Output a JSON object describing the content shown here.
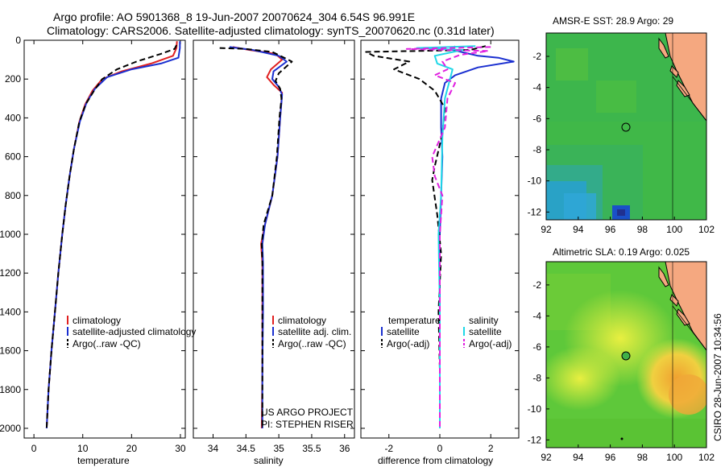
{
  "header": {
    "line1": "Argo profile: AO 5901368_8 19-Jun-2007 20070624_304 6.54S 96.991E",
    "line2": "Climatology: CARS2006. Satellite-adjusted climatology: synTS_20070620.nc (0.31d later)"
  },
  "colors": {
    "clim": "#e02020",
    "sat": "#1a2fd0",
    "argo": "#000000",
    "sat_diff_sal": "#20d8e8",
    "argo_diff_sal": "#e020e0",
    "land": "#f5a880"
  },
  "chart_data": [
    {
      "type": "line",
      "title": "",
      "xlabel": "temperature",
      "ylabel": "",
      "xlim": [
        -2,
        31
      ],
      "ylim": [
        2050,
        0
      ],
      "xticks": [
        0,
        10,
        20,
        30
      ],
      "yticks": [
        0,
        200,
        400,
        600,
        800,
        1000,
        1200,
        1400,
        1600,
        1800,
        2000
      ],
      "legend": [
        "climatology",
        "satellite-adjusted climatology",
        "Argo(..raw -QC)"
      ],
      "series": [
        {
          "name": "climatology",
          "color_key": "clim",
          "dash": false,
          "points": [
            [
              29.3,
              5
            ],
            [
              29.2,
              40
            ],
            [
              28.5,
              80
            ],
            [
              24,
              120
            ],
            [
              18,
              160
            ],
            [
              14,
              200
            ],
            [
              12,
              260
            ],
            [
              10.5,
              330
            ],
            [
              9.3,
              420
            ],
            [
              8.2,
              560
            ],
            [
              7.3,
              700
            ],
            [
              6.5,
              850
            ],
            [
              5.8,
              1000
            ],
            [
              5.0,
              1200
            ],
            [
              4.3,
              1400
            ],
            [
              3.6,
              1600
            ],
            [
              3.0,
              1800
            ],
            [
              2.6,
              2000
            ]
          ]
        },
        {
          "name": "satellite-adjusted climatology",
          "color_key": "sat",
          "dash": false,
          "points": [
            [
              29.9,
              5
            ],
            [
              29.9,
              40
            ],
            [
              29.6,
              90
            ],
            [
              26,
              120
            ],
            [
              20,
              150
            ],
            [
              15,
              190
            ],
            [
              12.5,
              250
            ],
            [
              10.8,
              320
            ],
            [
              9.4,
              420
            ],
            [
              8.2,
              560
            ],
            [
              7.3,
              700
            ],
            [
              6.5,
              850
            ],
            [
              5.8,
              1000
            ],
            [
              5.0,
              1200
            ],
            [
              4.3,
              1400
            ],
            [
              3.6,
              1600
            ],
            [
              3.0,
              1800
            ],
            [
              2.6,
              2000
            ]
          ]
        },
        {
          "name": "Argo(..raw -QC)",
          "color_key": "argo",
          "dash": true,
          "points": [
            [
              29.2,
              25
            ],
            [
              28.8,
              45
            ],
            [
              26,
              70
            ],
            [
              21,
              110
            ],
            [
              17,
              150
            ],
            [
              14,
              200
            ],
            [
              12.3,
              260
            ],
            [
              10.6,
              330
            ],
            [
              9.3,
              420
            ],
            [
              8.2,
              560
            ],
            [
              7.3,
              700
            ],
            [
              6.5,
              850
            ],
            [
              5.8,
              1000
            ],
            [
              5.0,
              1200
            ],
            [
              4.3,
              1400
            ],
            [
              3.6,
              1600
            ],
            [
              3.0,
              1800
            ],
            [
              2.6,
              2000
            ]
          ]
        }
      ]
    },
    {
      "type": "line",
      "title": "",
      "xlabel": "salinity",
      "xlim": [
        33.7,
        36.15
      ],
      "ylim": [
        2050,
        0
      ],
      "xticks": [
        34,
        34.5,
        35,
        35.5,
        36
      ],
      "xtick_labels": [
        "34",
        "34.5",
        "35",
        "35.5",
        "36"
      ],
      "legend": [
        "climatology",
        "satellite adj. clim.",
        "Argo(..raw -QC)"
      ],
      "annotations": [
        "US ARGO PROJECT",
        "PI: STEPHEN RISER"
      ],
      "series": [
        {
          "name": "climatology",
          "color_key": "clim",
          "dash": false,
          "points": [
            [
              34.3,
              35
            ],
            [
              34.55,
              50
            ],
            [
              34.95,
              70
            ],
            [
              35.05,
              100
            ],
            [
              34.88,
              150
            ],
            [
              34.82,
              190
            ],
            [
              34.92,
              230
            ],
            [
              35.05,
              270
            ],
            [
              35.02,
              400
            ],
            [
              34.98,
              600
            ],
            [
              34.9,
              800
            ],
            [
              34.79,
              950
            ],
            [
              34.73,
              1050
            ],
            [
              34.75,
              1150
            ],
            [
              34.75,
              1400
            ],
            [
              34.75,
              1700
            ],
            [
              34.74,
              2000
            ]
          ]
        },
        {
          "name": "satellite adj. clim.",
          "color_key": "sat",
          "dash": false,
          "points": [
            [
              34.25,
              35
            ],
            [
              34.6,
              50
            ],
            [
              35.0,
              80
            ],
            [
              35.12,
              110
            ],
            [
              34.92,
              160
            ],
            [
              34.9,
              200
            ],
            [
              35.0,
              240
            ],
            [
              35.05,
              280
            ],
            [
              35.02,
              400
            ],
            [
              34.98,
              600
            ],
            [
              34.9,
              800
            ],
            [
              34.79,
              950
            ],
            [
              34.75,
              1050
            ],
            [
              34.76,
              1150
            ],
            [
              34.76,
              1400
            ],
            [
              34.75,
              1700
            ],
            [
              34.75,
              2000
            ]
          ]
        },
        {
          "name": "Argo(..raw -QC)",
          "color_key": "argo",
          "dash": true,
          "points": [
            [
              34.1,
              40
            ],
            [
              34.5,
              45
            ],
            [
              34.9,
              60
            ],
            [
              35.2,
              110
            ],
            [
              35.0,
              170
            ],
            [
              34.95,
              210
            ],
            [
              35.02,
              250
            ],
            [
              35.04,
              300
            ],
            [
              35.01,
              400
            ],
            [
              34.97,
              600
            ],
            [
              34.9,
              800
            ],
            [
              34.77,
              950
            ],
            [
              34.74,
              1050
            ],
            [
              34.75,
              1150
            ],
            [
              34.75,
              1400
            ],
            [
              34.75,
              1700
            ],
            [
              34.75,
              2000
            ]
          ]
        }
      ]
    },
    {
      "type": "line",
      "title": "",
      "xlabel": "difference from climatology",
      "xlim": [
        -3.1,
        3.1
      ],
      "ylim": [
        2050,
        0
      ],
      "xticks": [
        -2,
        0,
        2
      ],
      "legend_temperature_heading": "temperature",
      "legend_salinity_heading": "salinity",
      "legend": [
        "satellite",
        "Argo(-adj)",
        "satellite",
        "Argo(-adj)"
      ],
      "series": [
        {
          "name": "temperature satellite",
          "color_key": "sat",
          "dash": false,
          "points": [
            [
              0.6,
              30
            ],
            [
              0.5,
              50
            ],
            [
              1.5,
              80
            ],
            [
              2.3,
              90
            ],
            [
              2.9,
              110
            ],
            [
              1.5,
              140
            ],
            [
              0.6,
              180
            ],
            [
              0.2,
              220
            ],
            [
              0.05,
              300
            ],
            [
              0.05,
              450
            ],
            [
              0.1,
              600
            ],
            [
              0.05,
              800
            ],
            [
              0.0,
              1000
            ],
            [
              0.0,
              1400
            ],
            [
              0.0,
              2000
            ]
          ]
        },
        {
          "name": "temperature Argo(-adj)",
          "color_key": "argo",
          "dash": true,
          "points": [
            [
              1.8,
              30
            ],
            [
              1.2,
              50
            ],
            [
              -2.9,
              60
            ],
            [
              -2.6,
              80
            ],
            [
              -1.2,
              110
            ],
            [
              -1.8,
              150
            ],
            [
              -0.8,
              200
            ],
            [
              -0.2,
              260
            ],
            [
              0.2,
              350
            ],
            [
              0.1,
              480
            ],
            [
              -0.2,
              650
            ],
            [
              -0.3,
              720
            ],
            [
              -0.1,
              900
            ],
            [
              0.05,
              1100
            ],
            [
              -0.05,
              1400
            ],
            [
              0.0,
              1700
            ],
            [
              0.0,
              2000
            ]
          ]
        },
        {
          "name": "salinity satellite",
          "color_key": "sat_diff_sal",
          "dash": false,
          "points": [
            [
              1.4,
              30
            ],
            [
              -0.9,
              40
            ],
            [
              0.9,
              50
            ],
            [
              -0.2,
              80
            ],
            [
              -0.1,
              120
            ],
            [
              0.5,
              150
            ],
            [
              0.2,
              300
            ],
            [
              0.1,
              500
            ],
            [
              0.05,
              800
            ],
            [
              -0.05,
              1000
            ],
            [
              0.0,
              1400
            ],
            [
              0.0,
              2000
            ]
          ]
        },
        {
          "name": "salinity Argo(-adj)",
          "color_key": "argo_diff_sal",
          "dash": true,
          "points": [
            [
              2.0,
              35
            ],
            [
              -1.3,
              45
            ],
            [
              1.9,
              55
            ],
            [
              0.8,
              75
            ],
            [
              0.1,
              110
            ],
            [
              0.3,
              150
            ],
            [
              -0.2,
              180
            ],
            [
              0.6,
              220
            ],
            [
              0.3,
              300
            ],
            [
              0.2,
              450
            ],
            [
              -0.3,
              600
            ],
            [
              -0.2,
              700
            ],
            [
              0.1,
              800
            ],
            [
              0.0,
              1000
            ],
            [
              0.0,
              1400
            ],
            [
              0.0,
              2000
            ]
          ]
        }
      ]
    },
    {
      "type": "heatmap",
      "title": "AMSR-E SST: 28.9 Argo: 29",
      "xlim": [
        92,
        102
      ],
      "ylim": [
        -12.5,
        -0.5
      ],
      "xticks": [
        92,
        94,
        96,
        98,
        100,
        102
      ],
      "yticks": [
        -2,
        -4,
        -6,
        -8,
        -10,
        -12
      ],
      "float_position": [
        96.991,
        -6.54
      ]
    },
    {
      "type": "heatmap",
      "title": "Altimetric SLA: 0.19 Argo: 0.025",
      "xlim": [
        92,
        102
      ],
      "ylim": [
        -12.5,
        -0.5
      ],
      "xticks": [
        92,
        94,
        96,
        98,
        100,
        102
      ],
      "yticks": [
        -2,
        -4,
        -6,
        -8,
        -10,
        -12
      ],
      "float_position": [
        96.991,
        -6.54
      ]
    }
  ],
  "footer": {
    "credit": "CSIRO 28-Jun-2007 10:34:56"
  }
}
